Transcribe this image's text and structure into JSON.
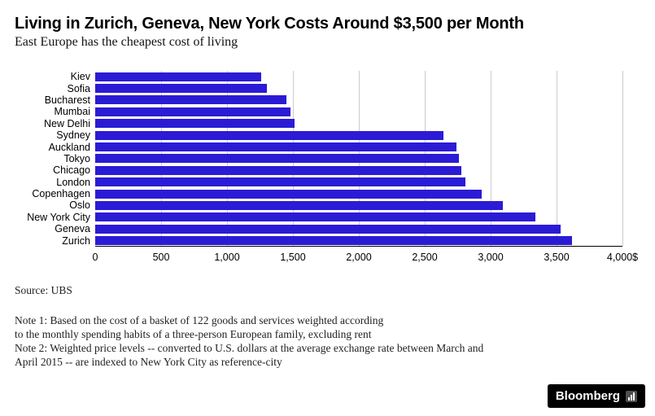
{
  "header": {
    "title": "Living in Zurich, Geneva, New York Costs Around $3,500 per Month",
    "subtitle": "East Europe has the cheapest cost of living"
  },
  "chart_data": {
    "type": "bar",
    "orientation": "horizontal",
    "title": "Living in Zurich, Geneva, New York Costs Around $3,500 per Month",
    "subtitle": "East Europe has the cheapest cost of living",
    "categories": [
      "Kiev",
      "Sofia",
      "Bucharest",
      "Mumbai",
      "New Delhi",
      "Sydney",
      "Auckland",
      "Tokyo",
      "Chicago",
      "London",
      "Copenhagen",
      "Oslo",
      "New York City",
      "Geneva",
      "Zurich"
    ],
    "values": [
      1260,
      1300,
      1450,
      1480,
      1510,
      2640,
      2740,
      2760,
      2780,
      2810,
      2930,
      3090,
      3340,
      3530,
      3620
    ],
    "xlim": [
      0,
      4000
    ],
    "x_ticks": [
      0,
      500,
      1000,
      1500,
      2000,
      2500,
      3000,
      3500,
      4000
    ],
    "x_tick_labels": [
      "0",
      "500",
      "1,000",
      "1,500",
      "2,000",
      "2,500",
      "3,000",
      "3,500",
      "4,000$"
    ],
    "bar_color": "#2b1bd5",
    "gridline_color": "#cccccc",
    "grid": true,
    "legend": "none"
  },
  "footer": {
    "source": "Source: UBS",
    "notes": [
      "Note 1: Based on the cost of a basket of 122 goods and services weighted according",
      "to the monthly spending habits of a three-person European family, excluding rent",
      "Note 2: Weighted price levels -- converted to U.S. dollars at the average exchange rate between March and",
      "April 2015 -- are indexed to New York City as reference-city"
    ],
    "logo_text": "Bloomberg"
  }
}
